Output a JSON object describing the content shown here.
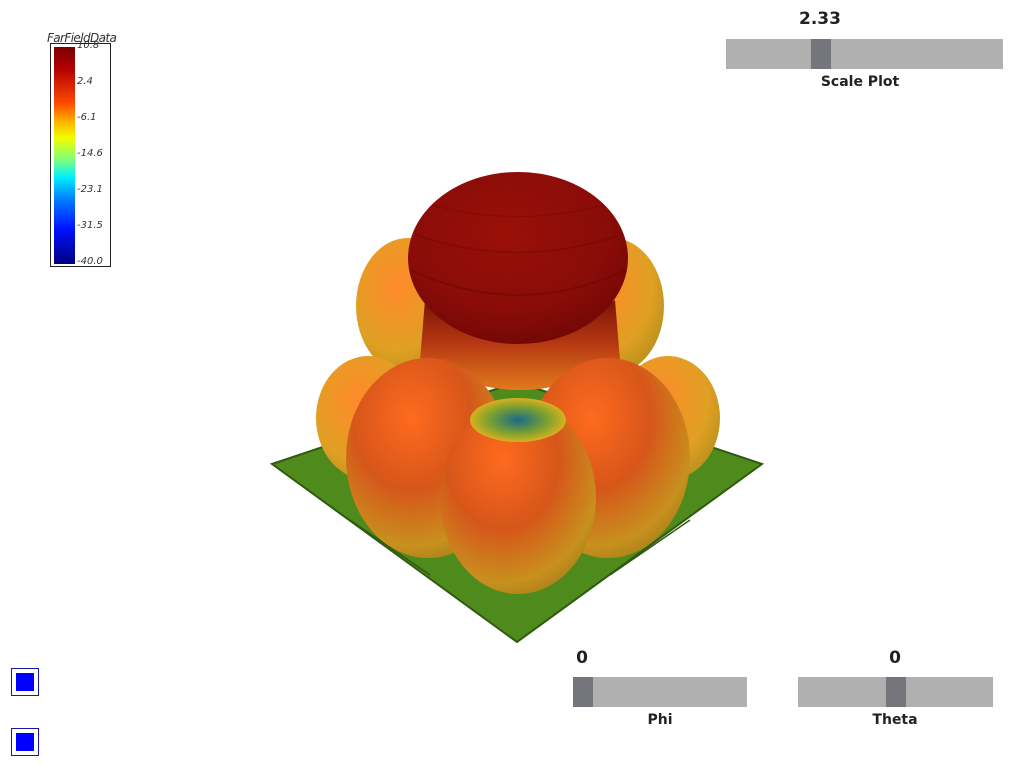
{
  "legend": {
    "title": "FarFieldData",
    "ticks": [
      "10.8",
      "2.4",
      "-6.1",
      "-14.6",
      "-23.1",
      "-31.5",
      "-40.0"
    ]
  },
  "sliders": {
    "scale": {
      "label": "Scale Plot",
      "value": "2.33",
      "position": 0.33
    },
    "phi": {
      "label": "Phi",
      "value": "0",
      "position": 0.0
    },
    "theta": {
      "label": "Theta",
      "value": "0",
      "position": 0.5
    }
  },
  "toggles": [
    {
      "name": "toggle-1"
    },
    {
      "name": "toggle-2"
    }
  ],
  "colors": {
    "ground": "#4f8a1c",
    "lobe_top": "#8a0c08",
    "lobe_mid": "#e05a1a",
    "lobe_edge": "#d8b020",
    "knob": "#74767b",
    "track": "#b0b0b0",
    "toggle_fill": "#0000ff"
  }
}
